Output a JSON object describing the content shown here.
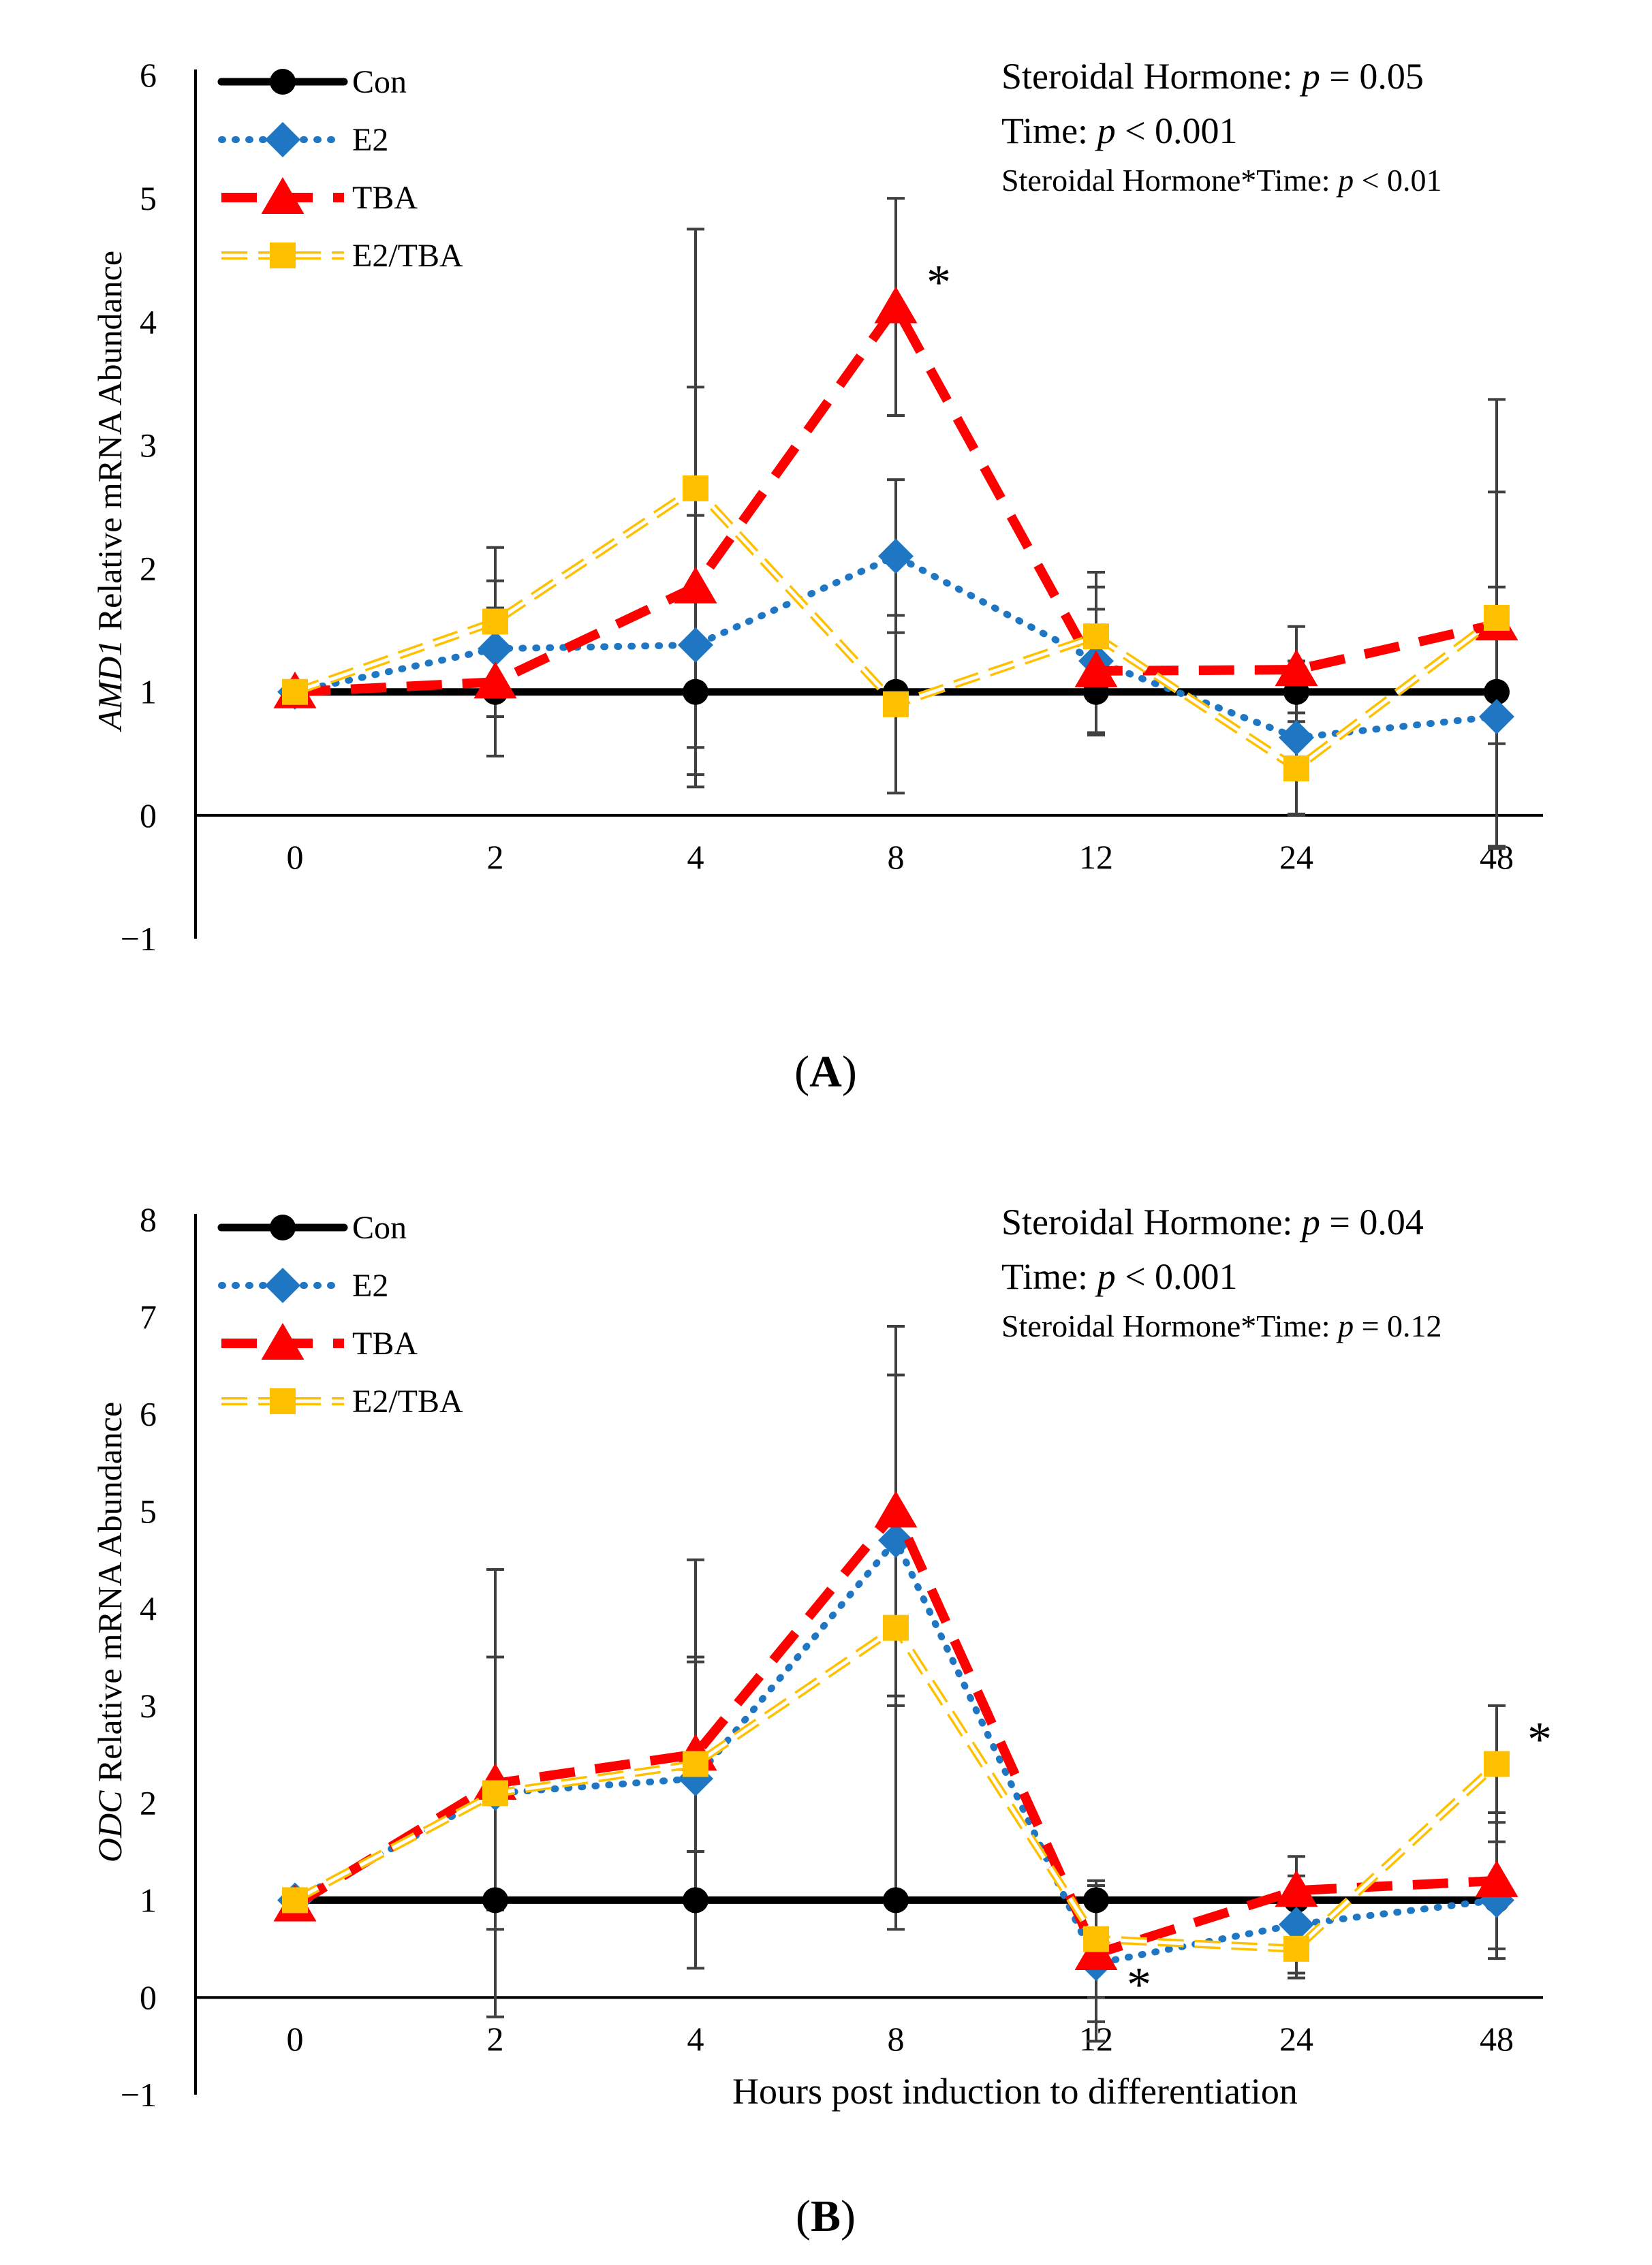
{
  "chart_data": [
    {
      "type": "line",
      "panel_label": "A",
      "panel_letter": "A",
      "panel_open": "(",
      "panel_close": ")",
      "ylabel_gene": "AMD1",
      "ylabel_rest": " Relative mRNA Abundance",
      "xlabel": "",
      "categories": [
        "0",
        "2",
        "4",
        "8",
        "12",
        "24",
        "48"
      ],
      "ylim": [
        -1,
        6
      ],
      "yticks": [
        "−1",
        "0",
        "1",
        "2",
        "3",
        "4",
        "5",
        "6"
      ],
      "colors": {
        "Con": "#000000",
        "E2": "#1f77c4",
        "TBA": "#ff0000",
        "E2/TBA": "#ffc000",
        "error_bar": "#404040"
      },
      "series": [
        {
          "name": "Con",
          "values": [
            1,
            1,
            1,
            1,
            1,
            1,
            1
          ],
          "err": [
            0,
            0,
            0,
            0,
            0,
            0,
            0
          ]
        },
        {
          "name": "E2",
          "values": [
            1.0,
            1.35,
            1.38,
            2.1,
            1.25,
            0.63,
            0.8
          ],
          "err": [
            0,
            0.55,
            1.05,
            0.62,
            0.6,
            0.62,
            1.05
          ]
        },
        {
          "name": "TBA",
          "values": [
            1.0,
            1.08,
            1.85,
            4.12,
            1.17,
            1.18,
            1.55
          ],
          "err": [
            0,
            0.6,
            1.62,
            0.88,
            0.5,
            0.35,
            1.82
          ]
        },
        {
          "name": "E2/TBA",
          "values": [
            1.0,
            1.57,
            2.65,
            0.9,
            1.45,
            0.38,
            1.6
          ],
          "err": [
            0,
            0.6,
            2.1,
            0.72,
            0.52,
            0.38,
            1.02
          ]
        }
      ],
      "annotations": [
        {
          "text": "*",
          "category": "8",
          "value": 4.12,
          "series": "TBA"
        }
      ],
      "stats": {
        "line1_label": "Steroidal Hormone: ",
        "line1_p": "p",
        "line1_val": " = 0.05",
        "line2_label": "Time: ",
        "line2_p": "p",
        "line2_val": " < 0.001",
        "line3_label": "Steroidal Hormone*Time:  ",
        "line3_p": "p",
        "line3_val": " < 0.01"
      },
      "legend_position": "top-left"
    },
    {
      "type": "line",
      "panel_label": "B",
      "panel_letter": "B",
      "panel_open": "(",
      "panel_close": ")",
      "ylabel_gene": "ODC",
      "ylabel_rest": " Relative mRNA Abundance",
      "xlabel": "Hours post induction to differentiation",
      "categories": [
        "0",
        "2",
        "4",
        "8",
        "12",
        "24",
        "48"
      ],
      "ylim": [
        -1,
        8
      ],
      "yticks": [
        "−1",
        "0",
        "1",
        "2",
        "3",
        "4",
        "5",
        "6",
        "7",
        "8"
      ],
      "colors": {
        "Con": "#000000",
        "E2": "#1f77c4",
        "TBA": "#ff0000",
        "E2/TBA": "#ffc000",
        "error_bar": "#404040"
      },
      "series": [
        {
          "name": "Con",
          "values": [
            1,
            1,
            1,
            1,
            1,
            1,
            1
          ],
          "err": [
            0,
            0,
            0,
            0,
            0,
            0,
            0
          ]
        },
        {
          "name": "E2",
          "values": [
            1.0,
            2.1,
            2.25,
            4.7,
            0.35,
            0.75,
            1.0
          ],
          "err": [
            0,
            1.4,
            1.2,
            1.7,
            0.8,
            0.5,
            0.6
          ]
        },
        {
          "name": "TBA",
          "values": [
            0.95,
            2.2,
            2.5,
            5.0,
            0.45,
            1.1,
            1.2
          ],
          "err": [
            0,
            1.3,
            1.0,
            1.9,
            0.7,
            0.35,
            0.7
          ]
        },
        {
          "name": "E2/TBA",
          "values": [
            1.0,
            2.1,
            2.4,
            3.8,
            0.6,
            0.5,
            2.4
          ],
          "err": [
            0,
            2.3,
            2.1,
            3.1,
            0.6,
            0.3,
            0.6
          ]
        }
      ],
      "annotations": [
        {
          "text": "*",
          "category": "12",
          "value": 0.35,
          "series": "E2"
        },
        {
          "text": "*",
          "category": "48",
          "value": 2.4,
          "series": "E2/TBA"
        }
      ],
      "stats": {
        "line1_label": "Steroidal Hormone: ",
        "line1_p": "p",
        "line1_val": " = 0.04",
        "line2_label": "Time: ",
        "line2_p": "p",
        "line2_val": " < 0.001",
        "line3_label": "Steroidal Hormone*Time:  ",
        "line3_p": "p",
        "line3_val": " = 0.12"
      },
      "legend_position": "top-left"
    }
  ]
}
